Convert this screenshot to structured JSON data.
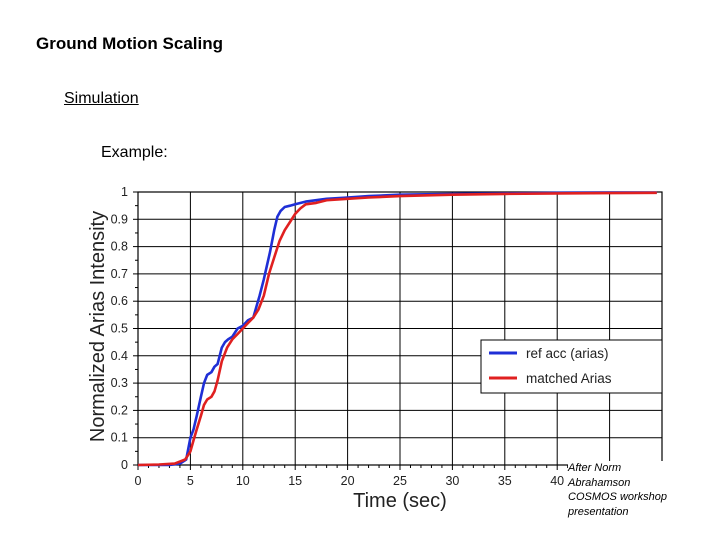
{
  "slide": {
    "title": "Ground Motion Scaling",
    "section": "Simulation",
    "example_label": "Example:"
  },
  "credit": {
    "lines": [
      "After Norm",
      "Abrahamson",
      "COSMOS workshop",
      "presentation"
    ]
  },
  "chart_data": {
    "type": "line",
    "title": "",
    "xlabel": "Time (sec)",
    "ylabel": "Normalized Arias Intensity",
    "xlim": [
      0,
      50
    ],
    "ylim": [
      0,
      1
    ],
    "xticks": [
      0,
      5,
      10,
      15,
      20,
      25,
      30,
      35,
      40
    ],
    "yticks": [
      0,
      0.1,
      0.2,
      0.3,
      0.4,
      0.5,
      0.6,
      0.7,
      0.8,
      0.9,
      1
    ],
    "grid": true,
    "legend_position": "lower-right",
    "series": [
      {
        "name": "ref acc (arias)",
        "color": "#1f2fd6",
        "x": [
          0,
          3,
          4,
          4.6,
          5.0,
          5.3,
          5.6,
          6.0,
          6.3,
          6.6,
          7.0,
          7.3,
          7.6,
          8.0,
          8.3,
          8.6,
          9.0,
          9.5,
          10.0,
          10.5,
          11.0,
          11.3,
          11.6,
          12.0,
          12.3,
          12.6,
          13.0,
          13.3,
          13.6,
          14.0,
          14.5,
          15.0,
          16.0,
          18.0,
          20.0,
          22.0,
          25.0,
          30.0,
          35.0,
          40.0,
          45.0,
          49.5
        ],
        "y": [
          0,
          0,
          0.005,
          0.02,
          0.1,
          0.13,
          0.18,
          0.25,
          0.3,
          0.33,
          0.34,
          0.36,
          0.37,
          0.43,
          0.45,
          0.46,
          0.47,
          0.5,
          0.51,
          0.53,
          0.54,
          0.58,
          0.62,
          0.68,
          0.73,
          0.78,
          0.86,
          0.91,
          0.93,
          0.945,
          0.95,
          0.955,
          0.965,
          0.975,
          0.98,
          0.985,
          0.99,
          0.993,
          0.995,
          0.997,
          0.998,
          0.998
        ]
      },
      {
        "name": "matched Arias",
        "color": "#e02020",
        "x": [
          0,
          2,
          3.5,
          4.5,
          5.0,
          5.3,
          5.6,
          6.0,
          6.3,
          6.6,
          7.0,
          7.3,
          7.6,
          8.0,
          8.5,
          9.0,
          9.5,
          10.0,
          10.5,
          11.0,
          11.5,
          12.0,
          12.5,
          13.0,
          13.5,
          14.0,
          14.5,
          15.0,
          15.5,
          16.0,
          17.0,
          18.0,
          20.0,
          22.0,
          25.0,
          30.0,
          35.0,
          40.0,
          45.0,
          49.5
        ],
        "y": [
          0,
          0.002,
          0.005,
          0.02,
          0.05,
          0.09,
          0.13,
          0.18,
          0.22,
          0.24,
          0.25,
          0.27,
          0.31,
          0.38,
          0.43,
          0.46,
          0.48,
          0.5,
          0.52,
          0.54,
          0.57,
          0.62,
          0.7,
          0.76,
          0.82,
          0.86,
          0.89,
          0.92,
          0.94,
          0.955,
          0.96,
          0.97,
          0.975,
          0.98,
          0.985,
          0.99,
          0.993,
          0.995,
          0.996,
          0.997
        ]
      }
    ]
  }
}
